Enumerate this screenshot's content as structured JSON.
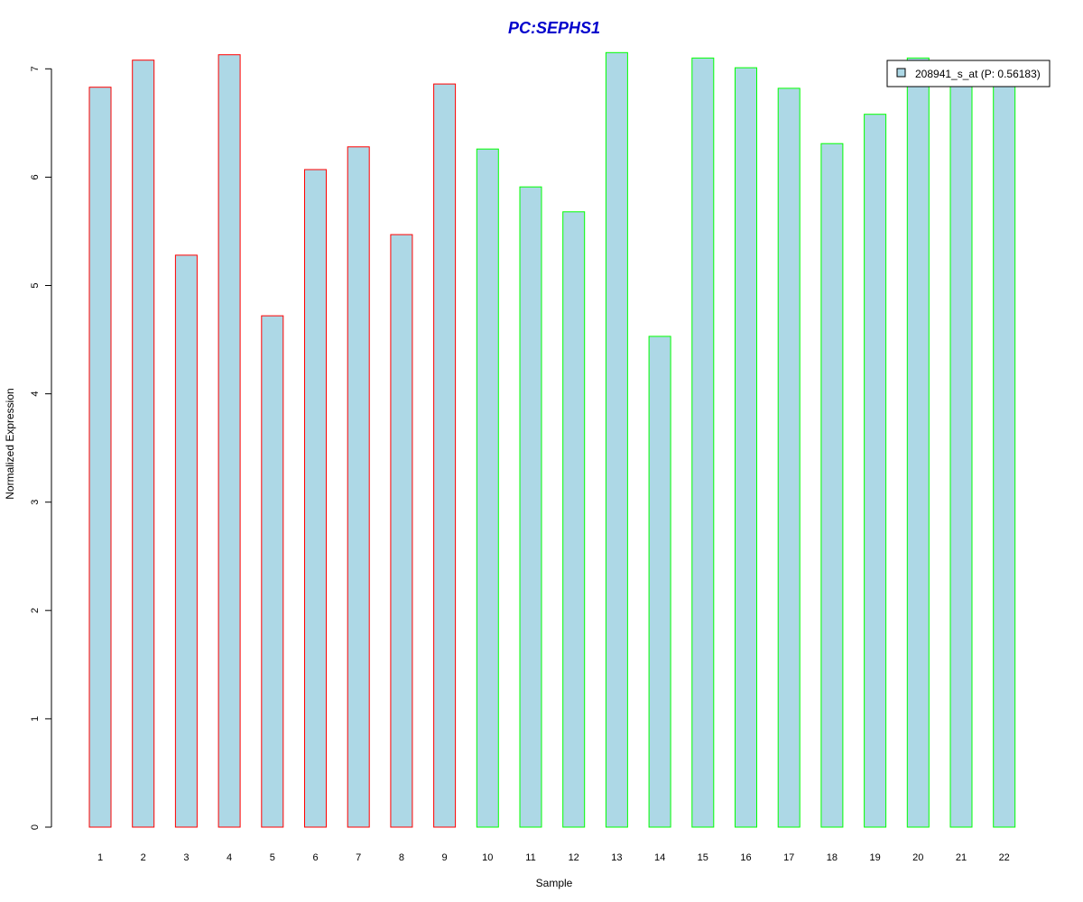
{
  "chart_data": {
    "type": "bar",
    "title": "PC:SEPHS1",
    "xlabel": "Sample",
    "ylabel": "Normalized Expression",
    "categories": [
      "1",
      "2",
      "3",
      "4",
      "5",
      "6",
      "7",
      "8",
      "9",
      "10",
      "11",
      "12",
      "13",
      "14",
      "15",
      "16",
      "17",
      "18",
      "19",
      "20",
      "21",
      "22"
    ],
    "series": [
      {
        "name": "208941_s_at (P: 0.56183)",
        "values": [
          6.83,
          7.08,
          5.28,
          7.13,
          4.72,
          6.07,
          6.28,
          5.47,
          6.86,
          6.26,
          5.91,
          5.68,
          7.15,
          4.53,
          7.1,
          7.01,
          6.82,
          6.31,
          6.58,
          7.1,
          6.9,
          6.9
        ]
      }
    ],
    "ylim": [
      0,
      7
    ],
    "yticks": [
      0,
      1,
      2,
      3,
      4,
      5,
      6,
      7
    ],
    "grid": false,
    "legend_position": "top-right",
    "colors": {
      "title": "#0000CC",
      "bar_fill": "#ADD8E6",
      "group_1_border": "#FF0000",
      "group_2_border": "#00FF00"
    },
    "group_1_count": 9
  }
}
